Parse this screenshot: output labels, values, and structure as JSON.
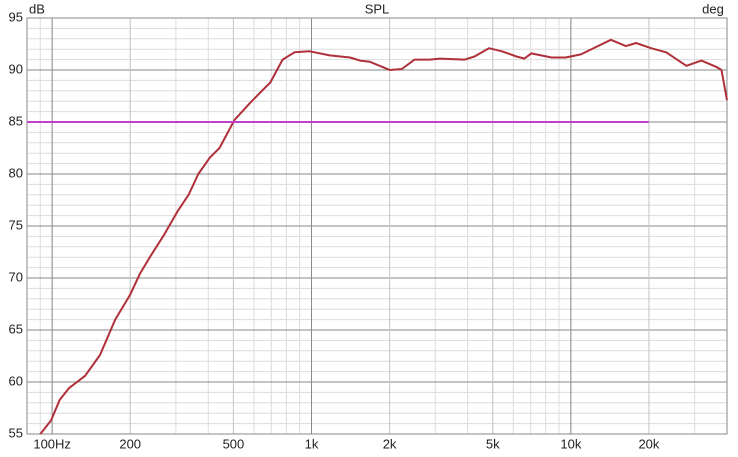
{
  "chart_data": {
    "type": "line",
    "title": "SPL",
    "y_label": "dB",
    "y2_label": "deg",
    "log_x": true,
    "grid": true,
    "xlim": [
      80,
      40000
    ],
    "ylim": [
      55,
      95
    ],
    "xticks": [
      {
        "value": 100,
        "label": "100Hz"
      },
      200,
      500,
      {
        "value": 1000,
        "label": "1k"
      },
      {
        "value": 2000,
        "label": "2k"
      },
      {
        "value": 5000,
        "label": "5k"
      },
      {
        "value": 10000,
        "label": "10k"
      },
      {
        "value": 20000,
        "label": "20k"
      }
    ],
    "yticks": [
      55,
      60,
      65,
      70,
      75,
      80,
      85,
      90,
      95
    ],
    "series": [
      {
        "color": "#b0303a",
        "x": [
          90,
          99,
          107,
          116,
          134,
          153,
          175,
          200,
          218,
          238,
          271,
          306,
          336,
          366,
          406,
          442,
          505,
          578,
          644,
          694,
          774,
          860,
          984,
          1176,
          1408,
          1540,
          1677,
          2005,
          2230,
          2498,
          2855,
          3122,
          3900,
          4250,
          4830,
          5420,
          6170,
          6620,
          7040,
          8430,
          9560,
          10930,
          12480,
          14270,
          16300,
          17840,
          20390,
          23310,
          27890,
          31880,
          36400,
          38100,
          40000
        ],
        "values": [
          55.0,
          56.3,
          58.3,
          59.4,
          60.6,
          62.6,
          66.0,
          68.4,
          70.4,
          72.0,
          74.2,
          76.5,
          78.0,
          80.0,
          81.6,
          82.5,
          85.2,
          86.8,
          88.0,
          88.8,
          91.0,
          91.7,
          91.8,
          91.4,
          91.2,
          90.9,
          90.8,
          90.0,
          90.1,
          91.0,
          91.0,
          91.1,
          91.0,
          91.3,
          92.1,
          91.8,
          91.3,
          91.1,
          91.6,
          91.2,
          91.2,
          91.5,
          92.2,
          92.9,
          92.3,
          92.6,
          92.1,
          91.7,
          90.4,
          90.9,
          90.3,
          90.0,
          87.1
        ]
      },
      {
        "color": "#c040c8",
        "x": [
          80,
          20000
        ],
        "values": [
          85,
          85
        ]
      }
    ]
  }
}
